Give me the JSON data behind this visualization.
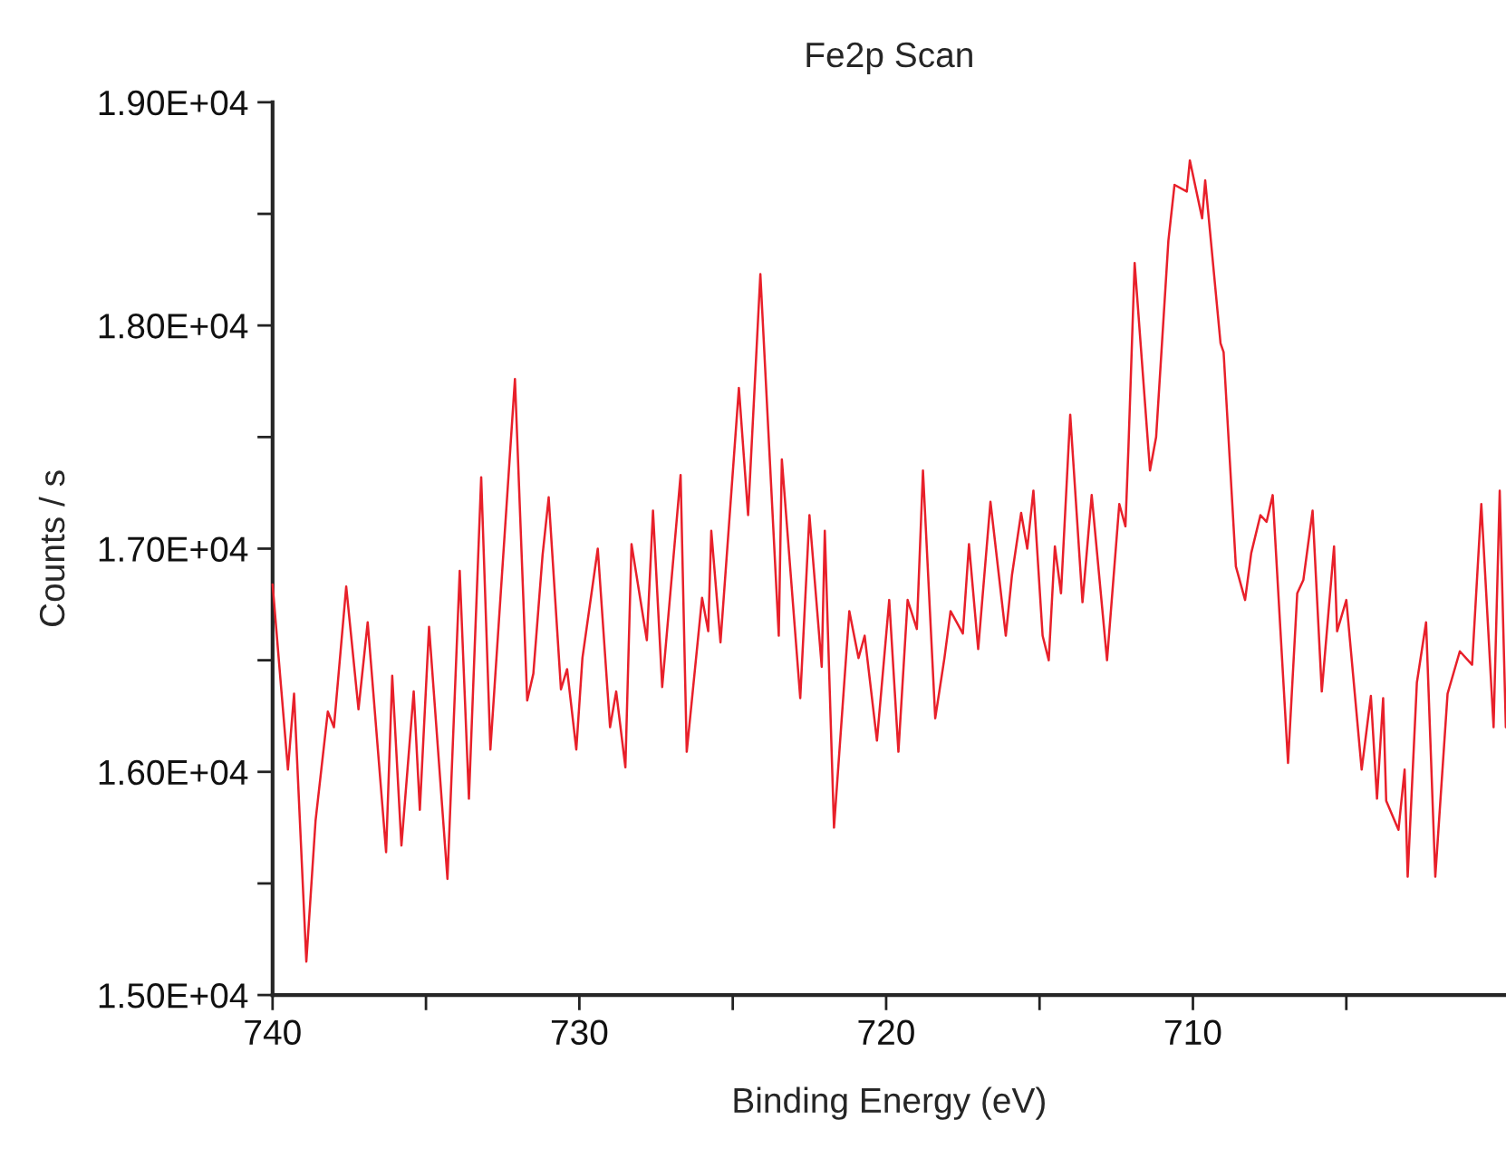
{
  "chart_data": {
    "type": "line",
    "title": "Fe2p Scan",
    "xlabel": "Binding Energy (eV)",
    "ylabel": "Counts / s",
    "xlim": [
      740,
      699.8
    ],
    "ylim": [
      15000,
      19000
    ],
    "xticks": [
      740,
      {
        "value": 735,
        "label": null
      },
      730,
      {
        "value": 725,
        "label": null
      },
      720,
      {
        "value": 715,
        "label": null
      },
      710,
      {
        "value": 705,
        "label": null
      }
    ],
    "yticks": [
      {
        "value": 15000,
        "label": "1.50E+04"
      },
      {
        "value": 15500,
        "label": null
      },
      {
        "value": 16000,
        "label": "1.60E+04"
      },
      {
        "value": 16500,
        "label": null
      },
      {
        "value": 17000,
        "label": "1.70E+04"
      },
      {
        "value": 17500,
        "label": null
      },
      {
        "value": 18000,
        "label": "1.80E+04"
      },
      {
        "value": 18500,
        "label": null
      },
      {
        "value": 19000,
        "label": "1.90E+04"
      }
    ],
    "grid": false,
    "marker": "none",
    "line_style": "solid",
    "series": [
      {
        "color": "#e8202a",
        "x": [
          740.0,
          739.5,
          739.3,
          738.9,
          738.6,
          738.2,
          738.0,
          737.6,
          737.2,
          736.9,
          736.3,
          736.1,
          735.8,
          735.4,
          735.2,
          734.9,
          734.3,
          733.9,
          733.6,
          733.2,
          732.9,
          732.1,
          731.7,
          731.5,
          731.2,
          731.0,
          730.6,
          730.4,
          730.1,
          729.9,
          729.4,
          729.0,
          728.8,
          728.5,
          728.3,
          727.8,
          727.6,
          727.3,
          726.7,
          726.5,
          726.0,
          725.8,
          725.7,
          725.4,
          724.8,
          724.5,
          724.1,
          723.5,
          723.4,
          722.8,
          722.5,
          722.1,
          722.0,
          721.7,
          721.2,
          720.9,
          720.7,
          720.3,
          719.9,
          719.6,
          719.3,
          719.0,
          718.8,
          718.4,
          718.1,
          717.9,
          717.5,
          717.3,
          717.0,
          716.6,
          716.1,
          715.9,
          715.6,
          715.4,
          715.2,
          714.9,
          714.7,
          714.5,
          714.3,
          714.0,
          713.6,
          713.3,
          712.8,
          712.4,
          712.2,
          712.1,
          711.9,
          711.4,
          711.2,
          710.8,
          710.6,
          710.2,
          710.1,
          709.7,
          709.6,
          709.1,
          709.0,
          708.6,
          708.3,
          708.1,
          707.8,
          707.6,
          707.4,
          706.9,
          706.6,
          706.4,
          706.1,
          705.8,
          705.4,
          705.3,
          705.0,
          704.5,
          704.2,
          704.0,
          703.8,
          703.7,
          703.3,
          703.1,
          703.0,
          702.7,
          702.4,
          702.1,
          701.7,
          701.3,
          700.9,
          700.6,
          700.2,
          700.0,
          699.8
        ],
        "values": [
          16840,
          16010,
          16350,
          15150,
          15780,
          16270,
          16200,
          16830,
          16280,
          16670,
          15640,
          16430,
          15670,
          16360,
          15830,
          16650,
          15520,
          16900,
          15880,
          17320,
          16100,
          17760,
          16320,
          16440,
          16970,
          17230,
          16370,
          16460,
          16100,
          16510,
          17000,
          16200,
          16360,
          16020,
          17020,
          16590,
          17170,
          16380,
          17330,
          16090,
          16780,
          16630,
          17080,
          16580,
          17720,
          17150,
          18230,
          16610,
          17400,
          16330,
          17150,
          16470,
          17080,
          15750,
          16720,
          16510,
          16610,
          16140,
          16770,
          16090,
          16770,
          16640,
          17350,
          16240,
          16510,
          16720,
          16620,
          17020,
          16550,
          17210,
          16610,
          16880,
          17160,
          17000,
          17260,
          16610,
          16500,
          17010,
          16800,
          17600,
          16760,
          17240,
          16500,
          17200,
          17100,
          17460,
          18280,
          17350,
          17500,
          18380,
          18630,
          18600,
          18740,
          18480,
          18650,
          17920,
          17880,
          16920,
          16770,
          16980,
          17150,
          17120,
          17240,
          16040,
          16800,
          16860,
          17170,
          16360,
          17010,
          16630,
          16770,
          16010,
          16340,
          15880,
          16330,
          15870,
          15740,
          16010,
          15530,
          16400,
          16670,
          15530,
          16350,
          16540,
          16480,
          17200,
          16200,
          17260,
          16200
        ]
      }
    ]
  }
}
